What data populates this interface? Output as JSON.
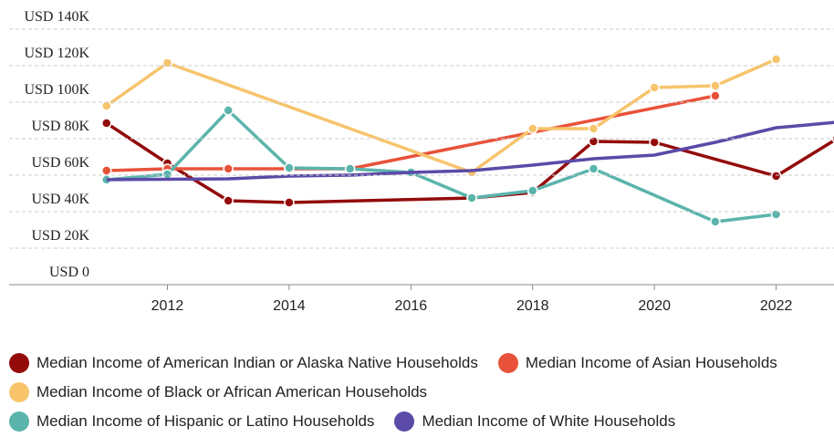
{
  "chart_data": {
    "type": "line",
    "xlim": [
      2009.4,
      2022.95
    ],
    "xticks": [
      2012,
      2014,
      2016,
      2018,
      2020,
      2022
    ],
    "ylim": [
      0,
      140000
    ],
    "yticks": [
      {
        "value": 0,
        "label": "USD 0"
      },
      {
        "value": 20000,
        "label": "USD 20K"
      },
      {
        "value": 40000,
        "label": "USD 40K"
      },
      {
        "value": 60000,
        "label": "USD 60K"
      },
      {
        "value": 80000,
        "label": "USD 80K"
      },
      {
        "value": 100000,
        "label": "USD 100K"
      },
      {
        "value": 120000,
        "label": "USD 120K"
      },
      {
        "value": 140000,
        "label": "USD 140K"
      }
    ],
    "grid": true,
    "legend": "bottom",
    "series": [
      {
        "name": "Median Income of American Indian or Alaska Native Households",
        "color": "#930b0b",
        "markers": true,
        "x": [
          2011,
          2012,
          2013,
          2014,
          2017,
          2018,
          2019,
          2020,
          2022,
          2023
        ],
        "values": [
          88500,
          66500,
          46000,
          45000,
          47500,
          50500,
          78500,
          78000,
          59500,
          80000
        ]
      },
      {
        "name": "Median Income of Asian Households",
        "color": "#e8523a",
        "markers": true,
        "x": [
          2011,
          2012,
          2013,
          2014,
          2015,
          2021
        ],
        "values": [
          62500,
          63500,
          63500,
          63500,
          63500,
          103500
        ]
      },
      {
        "name": "Median Income of Black or African American Households",
        "color": "#f7c46c",
        "markers": true,
        "x": [
          2011,
          2012,
          2017,
          2018,
          2019,
          2020,
          2021,
          2022
        ],
        "values": [
          98000,
          121500,
          61500,
          85500,
          85500,
          108000,
          109000,
          123500
        ]
      },
      {
        "name": "Median Income of Hispanic or Latino Households",
        "color": "#5bb4ac",
        "markers": true,
        "x": [
          2011,
          2012,
          2013,
          2014,
          2015,
          2016,
          2017,
          2018,
          2019,
          2021,
          2022
        ],
        "values": [
          57500,
          60500,
          95500,
          64000,
          63500,
          61500,
          47500,
          51500,
          63500,
          34500,
          38500
        ]
      },
      {
        "name": "Median Income of White Households",
        "color": "#5b4aa8",
        "markers": false,
        "x": [
          2011,
          2013,
          2014,
          2015,
          2016,
          2017,
          2018,
          2019,
          2020,
          2021,
          2022,
          2023
        ],
        "values": [
          57500,
          58000,
          59500,
          60000,
          61500,
          62500,
          65500,
          69000,
          71000,
          78000,
          86000,
          89000
        ]
      }
    ]
  }
}
